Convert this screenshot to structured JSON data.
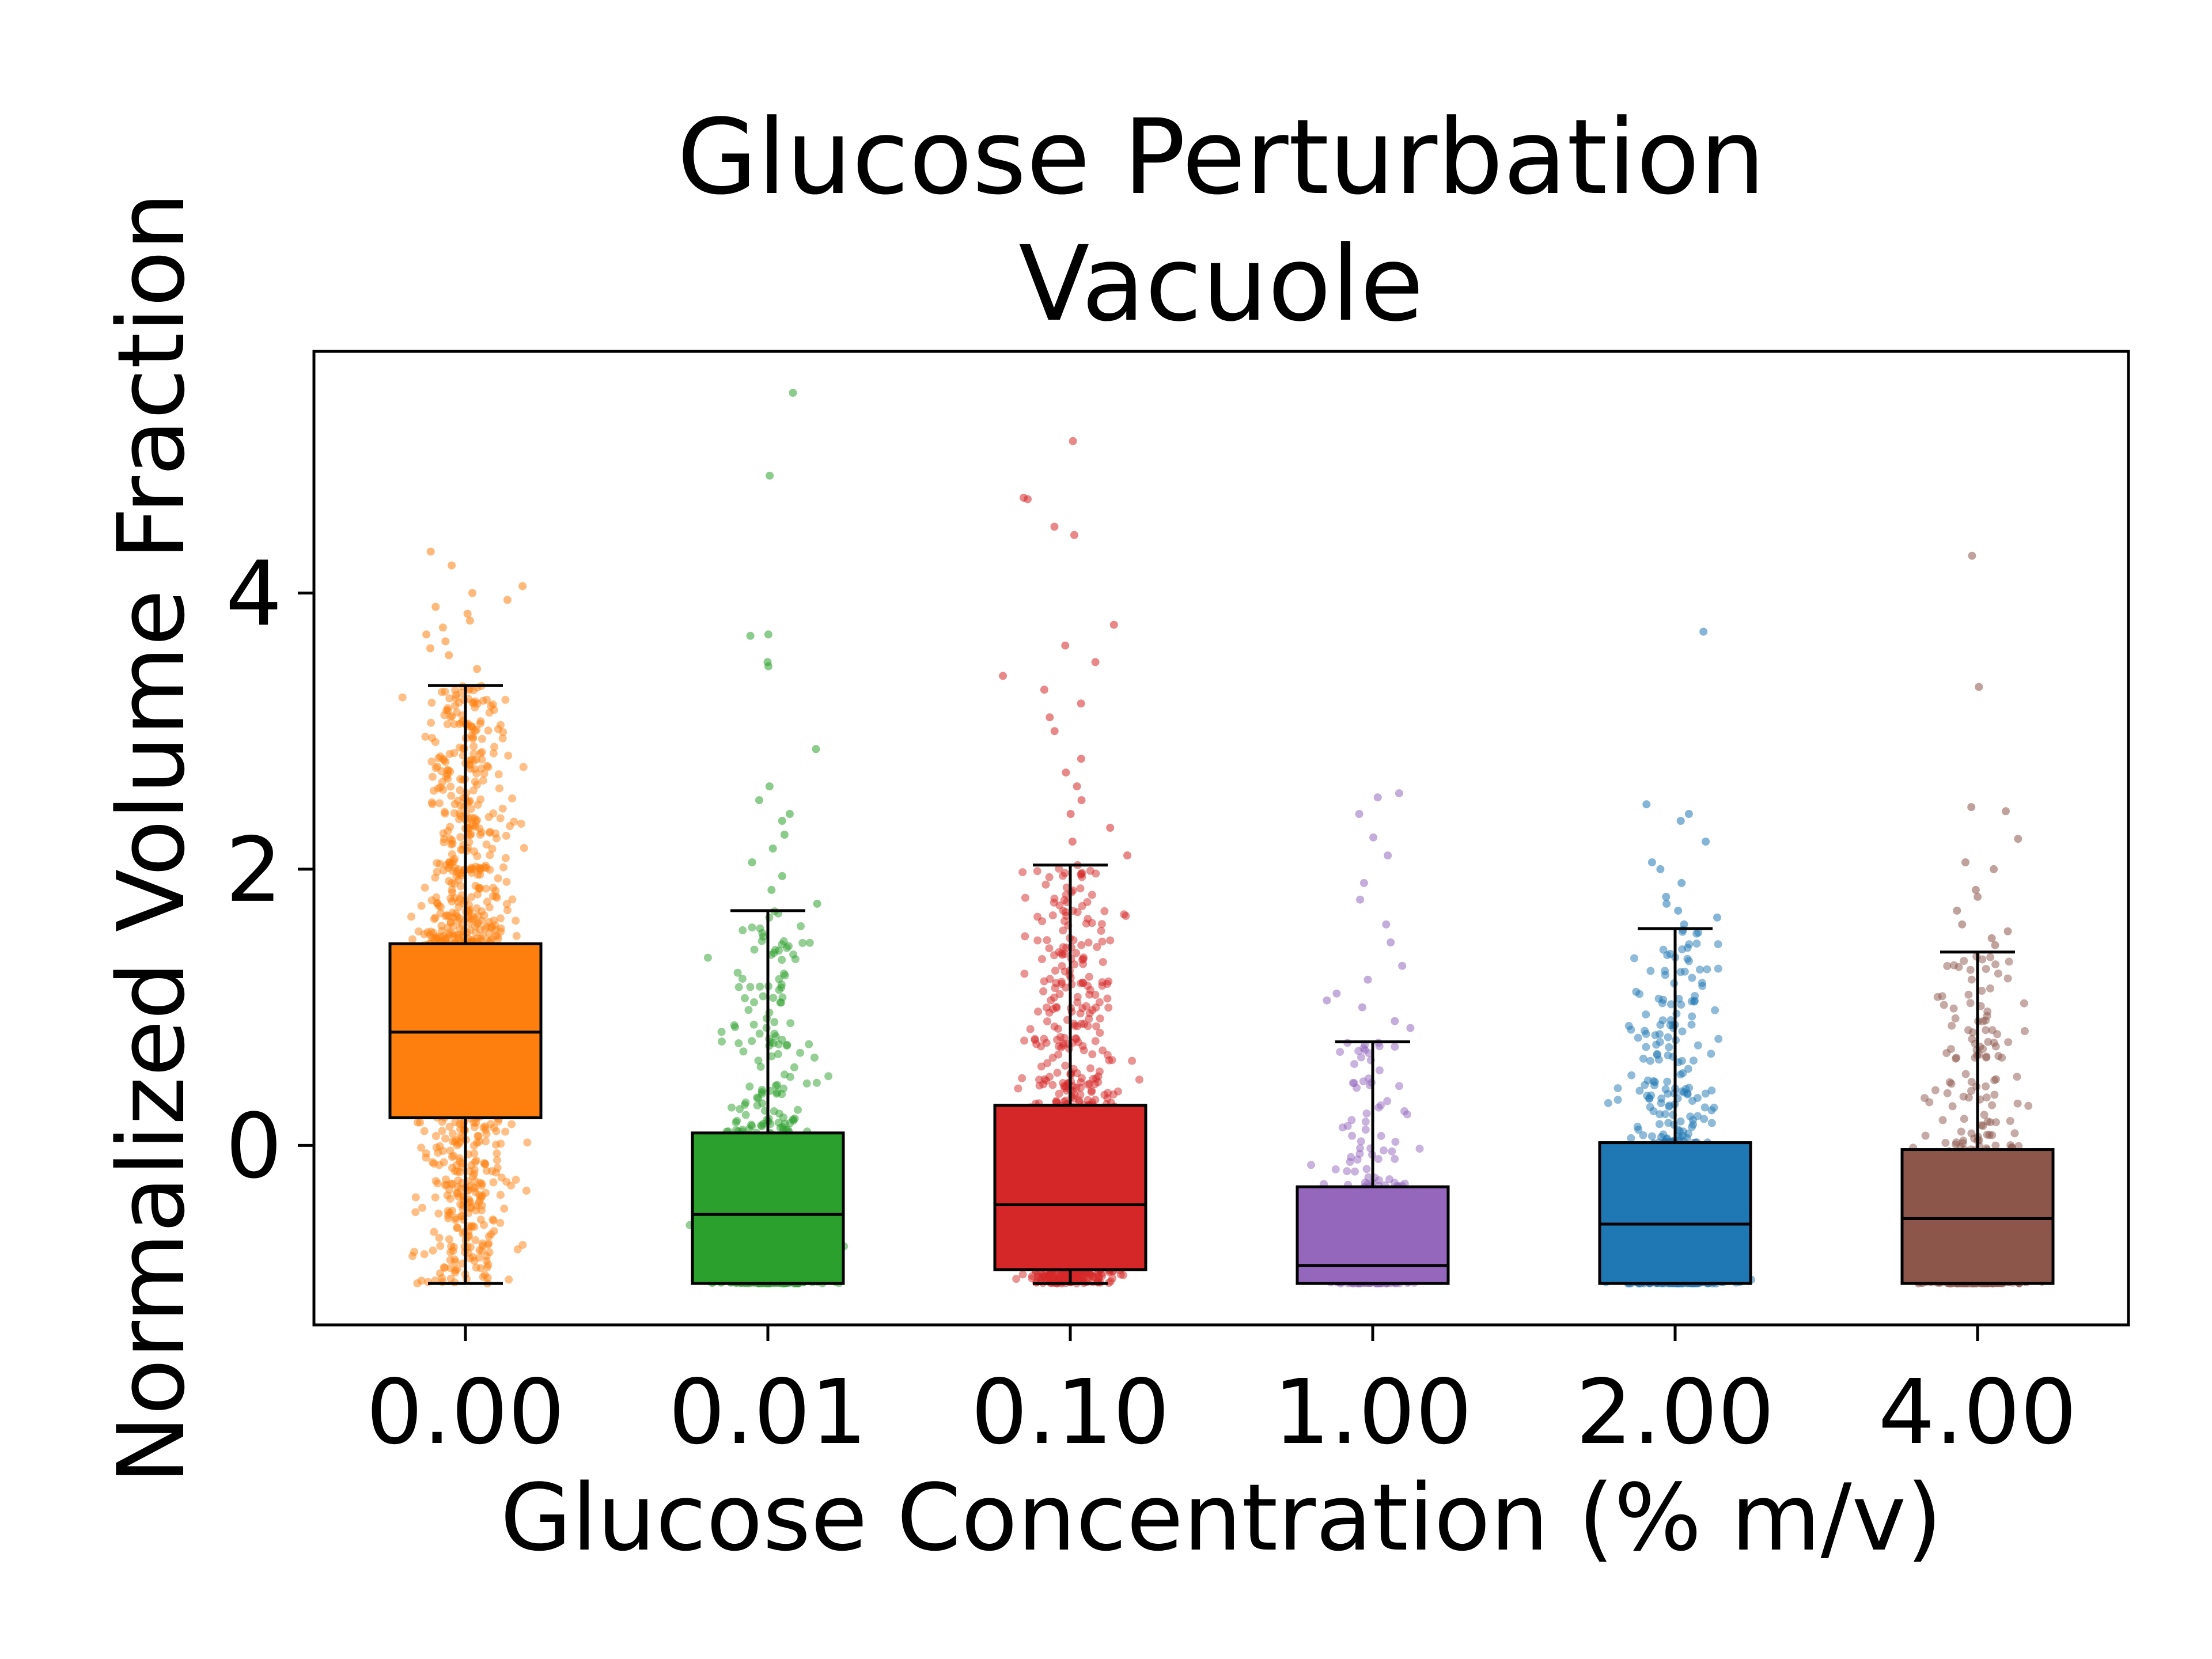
{
  "chart_data": {
    "type": "box",
    "title_lines": [
      "Glucose Perturbation",
      "Vacuole"
    ],
    "xlabel": "Glucose Concentration (% m/v)",
    "ylabel": "Normalized Volume Fraction",
    "ylim": [
      -1.3,
      5.75
    ],
    "yticks": [
      0,
      2,
      4
    ],
    "ytick_labels": [
      "0",
      "2",
      "4"
    ],
    "grid": false,
    "categories": [
      "0.00",
      "0.01",
      "0.10",
      "1.00",
      "2.00",
      "4.00"
    ],
    "series": [
      {
        "category": "0.00",
        "color": "#ff7f0e",
        "whisker_low": -1.0,
        "q1": 0.2,
        "median": 0.82,
        "q3": 1.46,
        "whisker_high": 3.33,
        "points_visible": true,
        "n_points": 1300,
        "outliers": [
          3.45,
          3.55,
          3.6,
          3.65,
          3.7,
          3.75,
          3.8,
          3.85,
          3.9,
          3.95,
          4.0,
          4.05,
          4.2,
          4.3
        ]
      },
      {
        "category": "0.01",
        "color": "#2ca02c",
        "whisker_low": -1.0,
        "q1": -1.0,
        "median": -0.5,
        "q3": 0.09,
        "whisker_high": 1.7,
        "points_visible": true,
        "n_points": 600,
        "outliers": [
          1.75,
          1.85,
          1.95,
          2.05,
          2.15,
          2.25,
          2.35,
          2.4,
          2.5,
          2.6,
          2.87,
          3.47,
          3.5,
          3.69,
          3.7,
          4.85,
          5.45
        ]
      },
      {
        "category": "0.10",
        "color": "#d62728",
        "whisker_low": -1.0,
        "q1": -0.9,
        "median": -0.43,
        "q3": 0.29,
        "whisker_high": 2.03,
        "points_visible": true,
        "n_points": 800,
        "outliers": [
          2.1,
          2.2,
          2.3,
          2.4,
          2.5,
          2.6,
          2.7,
          2.8,
          3.0,
          3.1,
          3.2,
          3.3,
          3.4,
          3.5,
          3.62,
          3.77,
          4.42,
          4.48,
          4.68,
          4.69,
          5.1
        ]
      },
      {
        "category": "1.00",
        "color": "#9467bd",
        "whisker_low": -1.0,
        "q1": -1.0,
        "median": -0.87,
        "q3": -0.3,
        "whisker_high": 0.75,
        "points_visible": true,
        "n_points": 300,
        "outliers": [
          0.85,
          0.9,
          1.0,
          1.05,
          1.1,
          1.2,
          1.3,
          1.47,
          1.6,
          1.78,
          1.9,
          2.1,
          2.23,
          2.4,
          2.52,
          2.55
        ]
      },
      {
        "category": "2.00",
        "color": "#1f77b4",
        "whisker_low": -1.0,
        "q1": -1.0,
        "median": -0.57,
        "q3": 0.02,
        "whisker_high": 1.57,
        "points_visible": true,
        "n_points": 700,
        "outliers": [
          1.6,
          1.65,
          1.7,
          1.75,
          1.8,
          1.9,
          2.0,
          2.05,
          2.2,
          2.35,
          2.4,
          2.47,
          3.72
        ]
      },
      {
        "category": "4.00",
        "color": "#8c564b",
        "whisker_low": -1.0,
        "q1": -1.0,
        "median": -0.53,
        "q3": -0.03,
        "whisker_high": 1.4,
        "points_visible": true,
        "n_points": 600,
        "outliers": [
          1.45,
          1.5,
          1.55,
          1.6,
          1.7,
          1.8,
          1.85,
          2.0,
          2.05,
          2.22,
          2.42,
          2.45,
          3.32,
          4.27
        ]
      }
    ]
  }
}
